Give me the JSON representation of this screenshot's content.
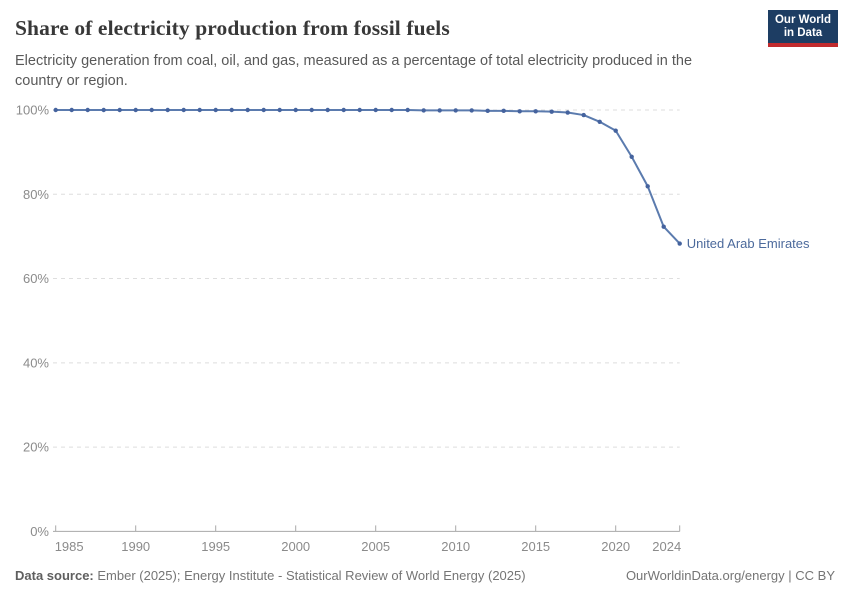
{
  "header": {
    "title": "Share of electricity production from fossil fuels",
    "subtitle": "Electricity generation from coal, oil, and gas, measured as a percentage of total electricity produced in the country or region.",
    "logo": {
      "line1": "Our World",
      "line2": "in Data",
      "bg_color": "#1d3d63",
      "accent_color": "#c12b2e"
    }
  },
  "chart_data": {
    "type": "line",
    "title": "Share of electricity production from fossil fuels",
    "xlabel": "",
    "ylabel": "",
    "xlim": [
      1985,
      2024
    ],
    "ylim": [
      0,
      100
    ],
    "x_ticks": [
      1985,
      1990,
      1995,
      2000,
      2005,
      2010,
      2015,
      2020,
      2024
    ],
    "y_ticks": [
      0,
      20,
      40,
      60,
      80,
      100
    ],
    "y_tick_suffix": "%",
    "grid": "horizontal-dashed",
    "legend_position": "end-of-line-label",
    "colors": {
      "line": "#5b7bae",
      "marker": "#45639e",
      "end_label": "#4c6a9c",
      "gridline": "#dedede",
      "axis": "#a8a8a8",
      "tick_label": "#8b8b8b"
    },
    "series": [
      {
        "name": "United Arab Emirates",
        "x": [
          1985,
          1986,
          1987,
          1988,
          1989,
          1990,
          1991,
          1992,
          1993,
          1994,
          1995,
          1996,
          1997,
          1998,
          1999,
          2000,
          2001,
          2002,
          2003,
          2004,
          2005,
          2006,
          2007,
          2008,
          2009,
          2010,
          2011,
          2012,
          2013,
          2014,
          2015,
          2016,
          2017,
          2018,
          2019,
          2020,
          2021,
          2022,
          2023,
          2024
        ],
        "values": [
          100,
          100,
          100,
          100,
          100,
          100,
          100,
          100,
          100,
          100,
          100,
          100,
          100,
          100,
          100,
          100,
          100,
          100,
          100,
          100,
          100,
          100,
          100,
          99.9,
          99.9,
          99.9,
          99.9,
          99.8,
          99.8,
          99.7,
          99.7,
          99.6,
          99.4,
          98.8,
          97.2,
          95.1,
          88.9,
          81.9,
          72.3,
          68.3
        ]
      }
    ]
  },
  "footer": {
    "source_label": "Data source:",
    "source_text": " Ember (2025); Energy Institute - Statistical Review of World Energy (2025)",
    "credit": "OurWorldinData.org/energy | CC BY"
  }
}
